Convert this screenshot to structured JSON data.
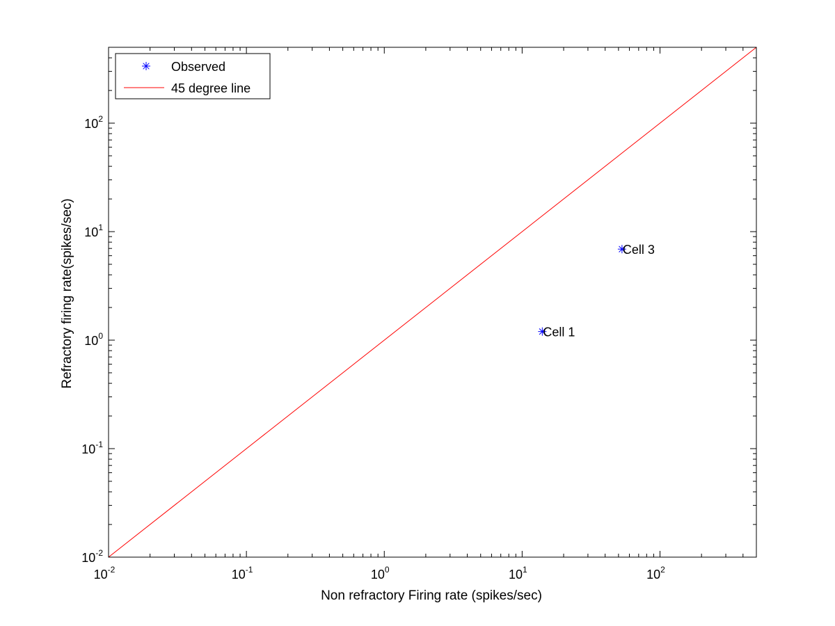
{
  "chart_data": {
    "type": "scatter",
    "xlabel": "Non refractory Firing rate (spikes/sec)",
    "ylabel": "Refractory firing rate(spikes/sec)",
    "xscale": "log",
    "yscale": "log",
    "xlim": [
      0.01,
      500
    ],
    "ylim": [
      0.01,
      500
    ],
    "x_tick_labels": [
      {
        "base": "10",
        "exp": "-2"
      },
      {
        "base": "10",
        "exp": "-1"
      },
      {
        "base": "10",
        "exp": "0"
      },
      {
        "base": "10",
        "exp": "1"
      },
      {
        "base": "10",
        "exp": "2"
      }
    ],
    "y_tick_labels": [
      {
        "base": "10",
        "exp": "-2"
      },
      {
        "base": "10",
        "exp": "-1"
      },
      {
        "base": "10",
        "exp": "0"
      },
      {
        "base": "10",
        "exp": "1"
      },
      {
        "base": "10",
        "exp": "2"
      }
    ],
    "grid": false,
    "legend_position": "top-left",
    "series": [
      {
        "name": "Observed",
        "kind": "scatter",
        "marker": "asterisk",
        "color": "#0000ff",
        "points": [
          {
            "x": 14,
            "y": 1.2,
            "label": "Cell 1"
          },
          {
            "x": 53,
            "y": 6.9,
            "label": "Cell 3"
          }
        ]
      },
      {
        "name": "45 degree line",
        "kind": "line",
        "color": "#ff0000",
        "points": [
          {
            "x": 0.01,
            "y": 0.01
          },
          {
            "x": 500,
            "y": 500
          }
        ]
      }
    ]
  }
}
